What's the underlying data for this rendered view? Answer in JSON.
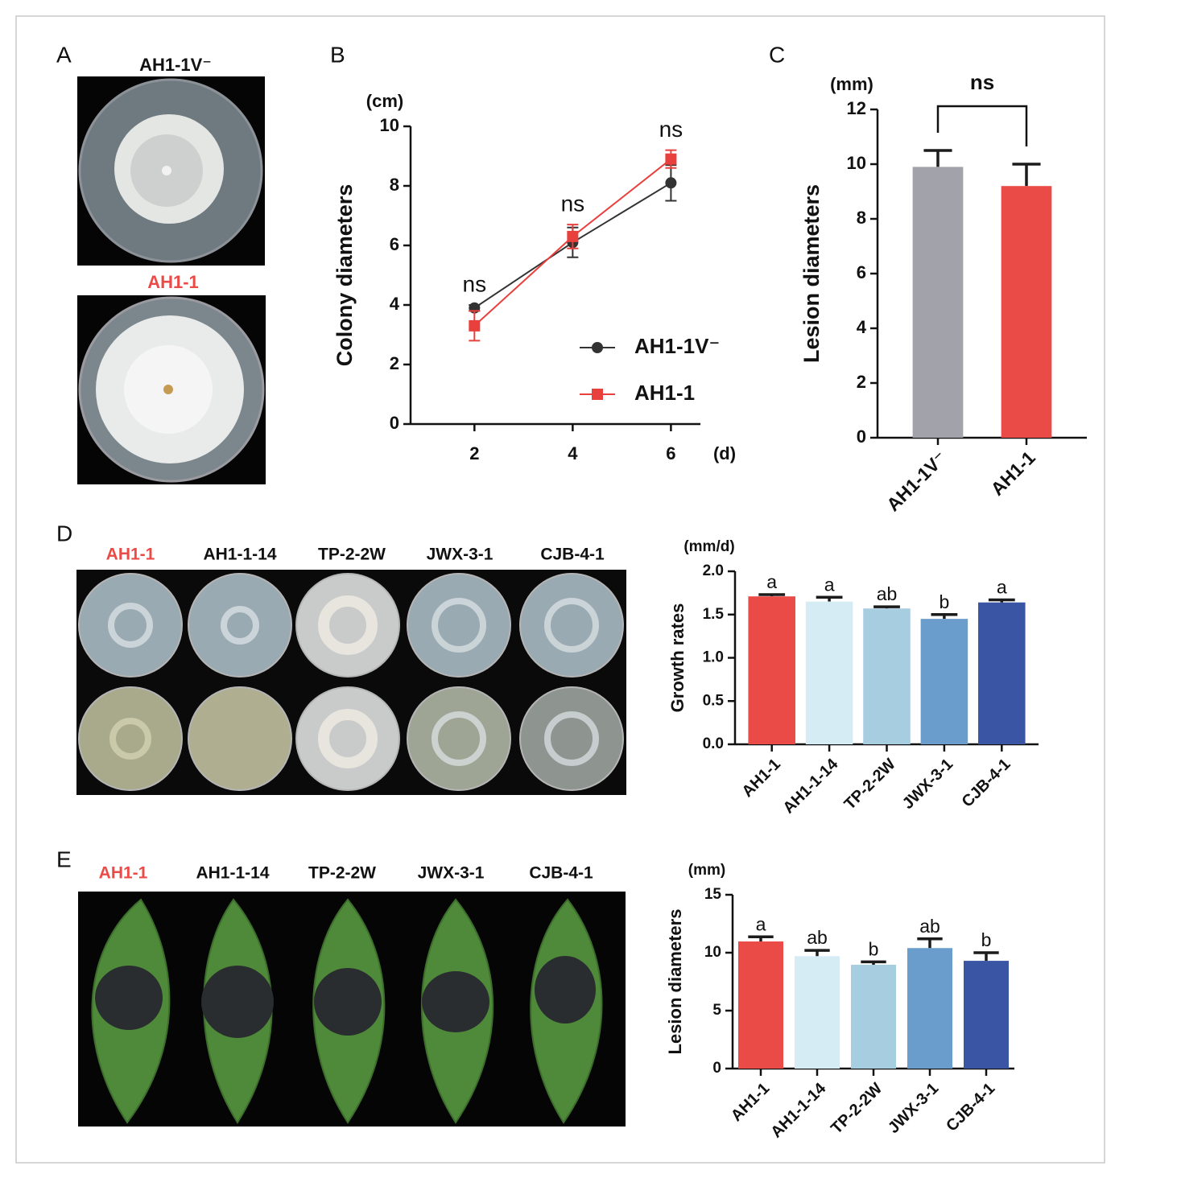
{
  "figure": {
    "panel_a": "A"
  },
  "chart_data": [
    {
      "type": "line",
      "panel": "B",
      "y_label": "Colony diameters",
      "y_unit": "(cm)",
      "x_unit": "(d)",
      "x": [
        2,
        4,
        6
      ],
      "xlim": [
        0.7,
        6.6
      ],
      "xticks": [
        2,
        4,
        6
      ],
      "ylim": [
        0,
        10
      ],
      "yticks": [
        0,
        2,
        4,
        6,
        8,
        10
      ],
      "series": [
        {
          "name": "AH1-1V⁻",
          "color": "#333333",
          "marker": "circle",
          "values": [
            3.9,
            6.1,
            8.1
          ],
          "errors": [
            0.1,
            0.5,
            0.6
          ]
        },
        {
          "name": "AH1-1",
          "color": "#e8403c",
          "marker": "square",
          "values": [
            3.3,
            6.3,
            8.9
          ],
          "errors": [
            0.5,
            0.4,
            0.3
          ]
        }
      ],
      "annotations": [
        "ns",
        "ns",
        "ns"
      ]
    },
    {
      "type": "bar",
      "panel": "C",
      "y_label": "Lesion diameters",
      "y_unit": "(mm)",
      "categories": [
        "AH1-1V⁻",
        "AH1-1"
      ],
      "values": [
        9.9,
        9.2
      ],
      "errors": [
        0.6,
        0.8
      ],
      "colors": [
        "#a2a2aa",
        "#eb4b47"
      ],
      "ylim": [
        0,
        12
      ],
      "yticks": [
        0,
        2,
        4,
        6,
        8,
        10,
        12
      ],
      "comparison": "ns"
    },
    {
      "type": "bar",
      "panel": "D",
      "y_label": "Growth rates",
      "y_unit": "(mm/d)",
      "categories": [
        "AH1-1",
        "AH1-1-14",
        "TP-2-2W",
        "JWX-3-1",
        "CJB-4-1"
      ],
      "values": [
        1.71,
        1.65,
        1.57,
        1.45,
        1.64
      ],
      "errors": [
        0.02,
        0.05,
        0.02,
        0.05,
        0.03
      ],
      "letters": [
        "a",
        "a",
        "ab",
        "b",
        "a"
      ],
      "colors": [
        "#eb4b47",
        "#d6ecf5",
        "#a6cde0",
        "#6a9ccc",
        "#3a55a3"
      ],
      "ylim": [
        0,
        2
      ],
      "yticks": [
        {
          "value": 0,
          "label": "0.0"
        },
        {
          "value": 0.5,
          "label": "0.5"
        },
        {
          "value": 1,
          "label": "1.0"
        },
        {
          "value": 1.5,
          "label": "1.5"
        },
        {
          "value": 2,
          "label": "2.0"
        }
      ]
    },
    {
      "type": "bar",
      "panel": "E",
      "y_label": "Lesion diameters",
      "y_unit": "(mm)",
      "categories": [
        "AH1-1",
        "AH1-1-14",
        "TP-2-2W",
        "JWX-3-1",
        "CJB-4-1"
      ],
      "values": [
        10.97,
        9.7,
        8.96,
        10.4,
        9.3
      ],
      "errors": [
        0.4,
        0.5,
        0.25,
        0.8,
        0.7
      ],
      "letters": [
        "a",
        "ab",
        "b",
        "ab",
        "b"
      ],
      "colors": [
        "#eb4b47",
        "#d6ecf5",
        "#a6cde0",
        "#6a9ccc",
        "#3a55a3"
      ],
      "ylim": [
        0,
        15
      ],
      "yticks": [
        0,
        5,
        10,
        15
      ]
    }
  ]
}
